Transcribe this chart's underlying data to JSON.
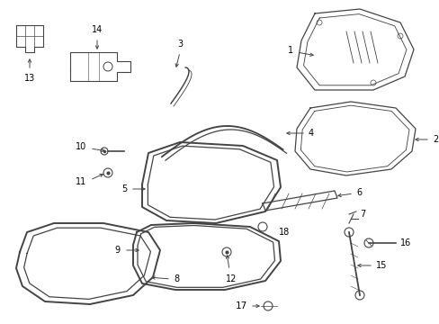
{
  "bg_color": "#ffffff",
  "lc": "#444444",
  "lc_light": "#888888"
}
